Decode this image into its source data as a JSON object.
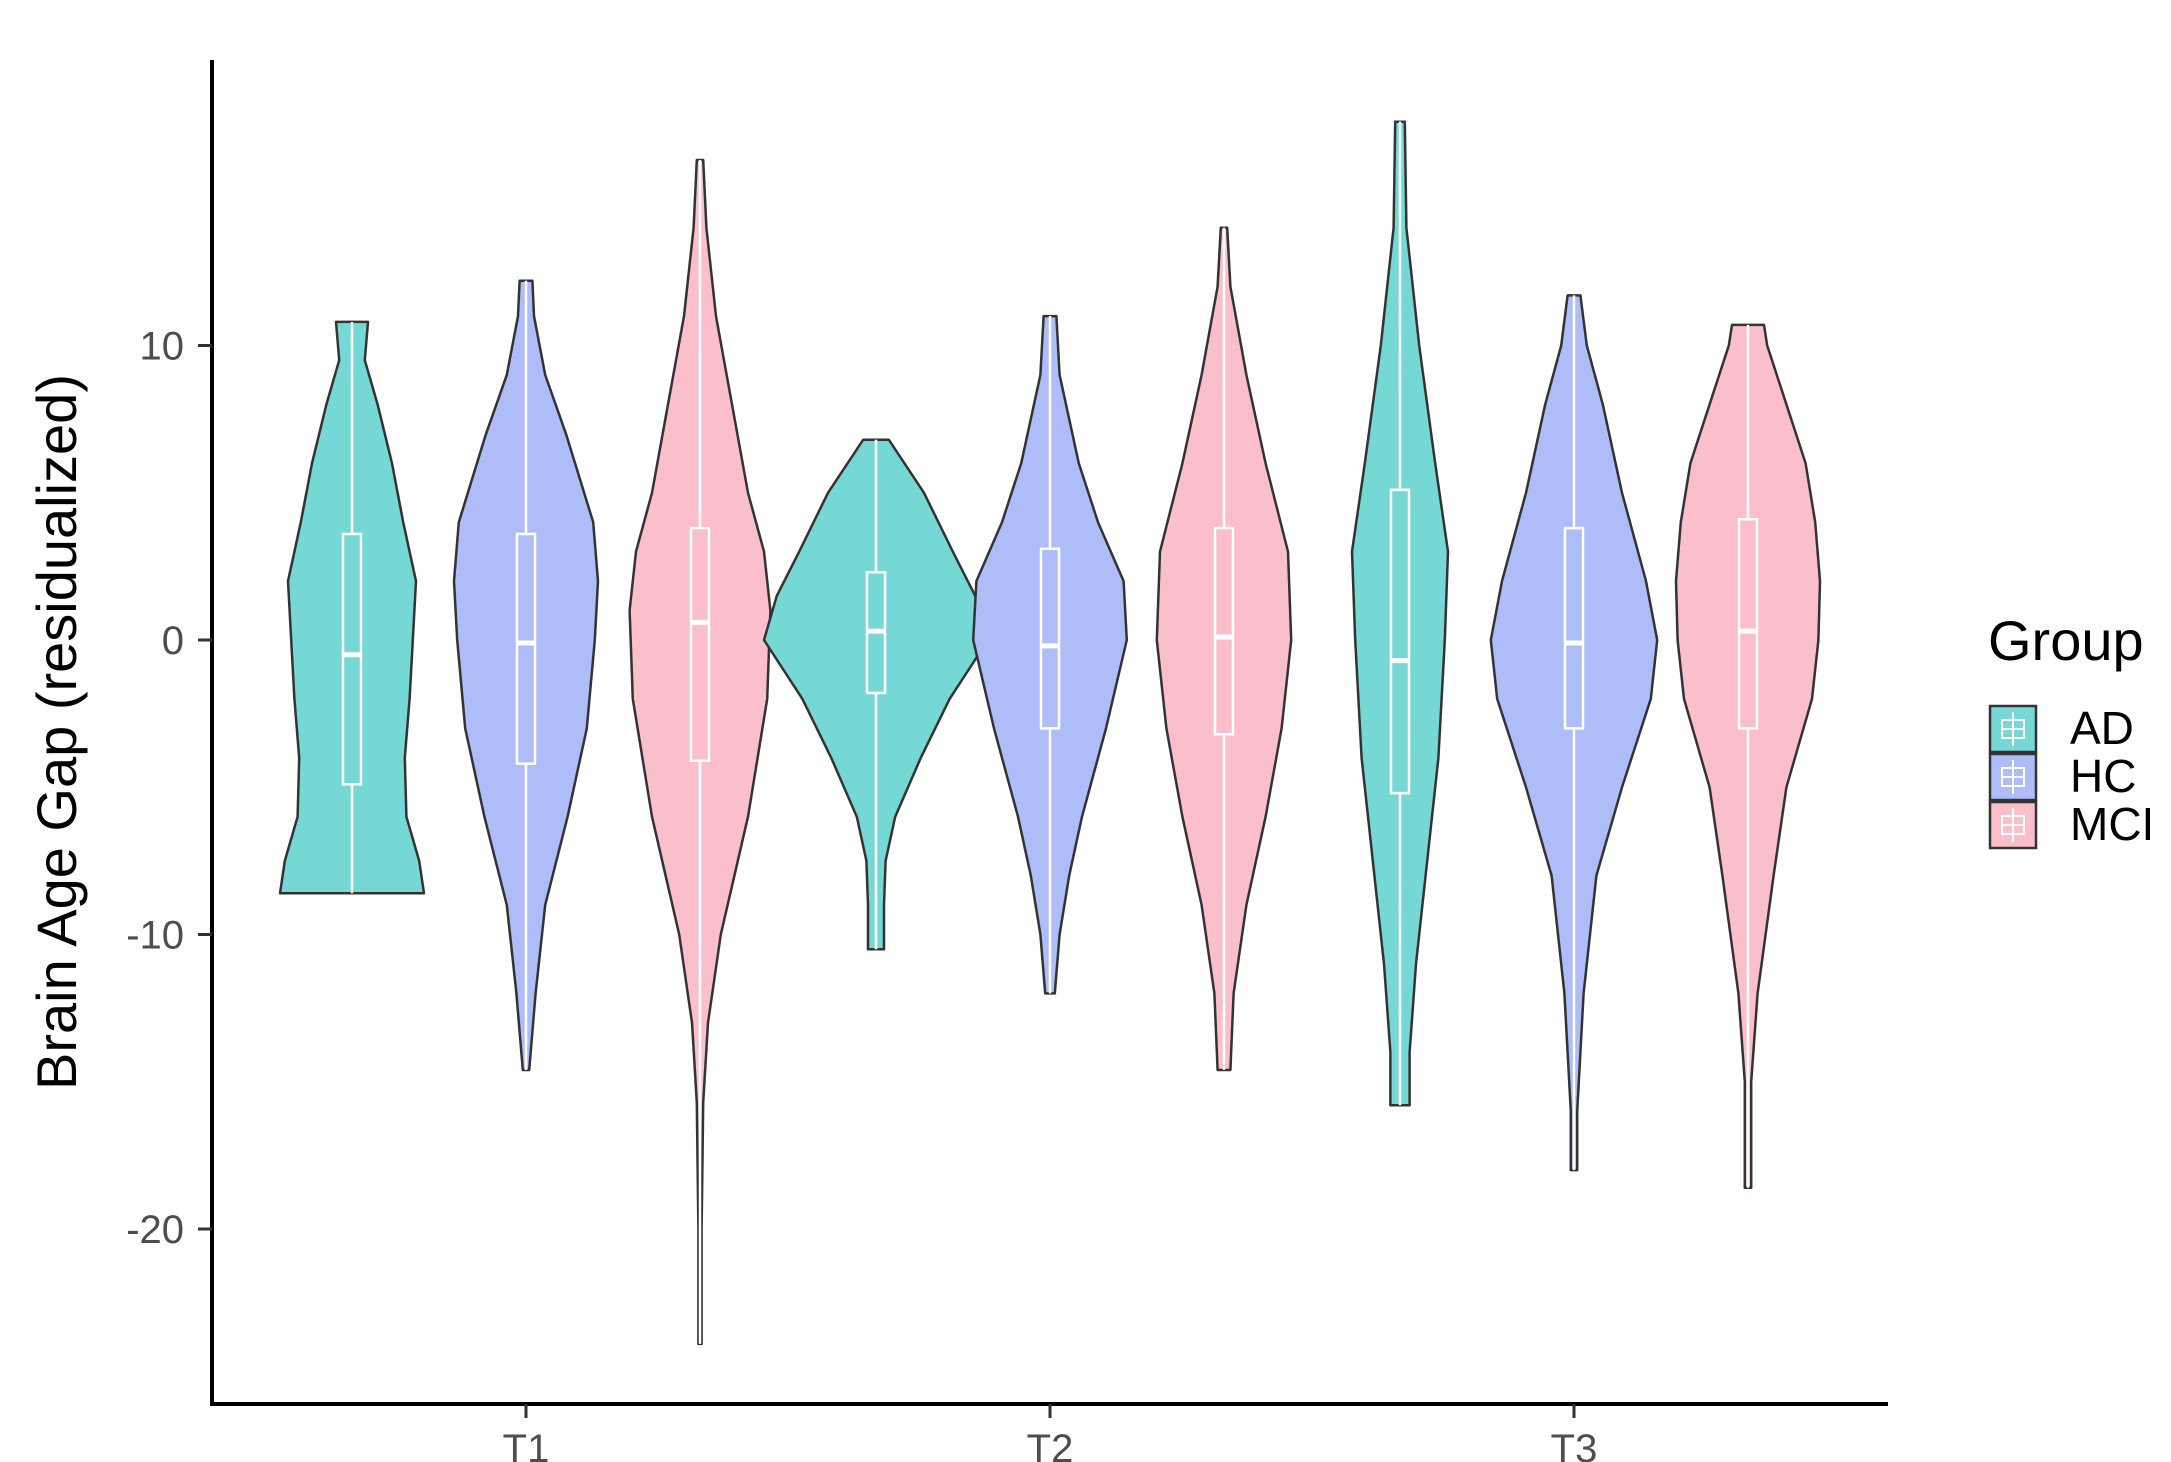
{
  "chart_data": {
    "type": "violin",
    "title": "",
    "xlabel": "",
    "ylabel": "Brain Age Gap (residualized)",
    "categories": [
      "T1",
      "T2",
      "T3"
    ],
    "y_ticks": [
      {
        "value": 10,
        "label": "10"
      },
      {
        "value": 0,
        "label": "0"
      },
      {
        "value": -10,
        "label": "-10"
      },
      {
        "value": -20,
        "label": "-20"
      }
    ],
    "ylim": [
      -26,
      20
    ],
    "grid": false,
    "legend": {
      "title": "Group",
      "position": "right"
    },
    "series": [
      {
        "name": "AD",
        "color": "#76D8D4"
      },
      {
        "name": "HC",
        "color": "#AEBCF8"
      },
      {
        "name": "MCI",
        "color": "#FBBFCB"
      }
    ],
    "violins": [
      {
        "category": "T1",
        "group": "AD",
        "min": -8.6,
        "q1": -4.9,
        "median": -0.5,
        "q3": 3.6,
        "max": 10.8,
        "density": [
          [
            -8.6,
            0.45
          ],
          [
            -7.5,
            0.42
          ],
          [
            -6,
            0.34
          ],
          [
            -4,
            0.33
          ],
          [
            -2,
            0.36
          ],
          [
            0,
            0.38
          ],
          [
            2,
            0.4
          ],
          [
            4,
            0.32
          ],
          [
            6,
            0.25
          ],
          [
            8,
            0.16
          ],
          [
            9.5,
            0.08
          ],
          [
            10.8,
            0.1
          ]
        ]
      },
      {
        "category": "T1",
        "group": "HC",
        "min": -14.6,
        "q1": -4.2,
        "median": -0.1,
        "q3": 3.6,
        "max": 12.2,
        "density": [
          [
            -14.6,
            0.02
          ],
          [
            -12,
            0.06
          ],
          [
            -9,
            0.12
          ],
          [
            -6,
            0.26
          ],
          [
            -3,
            0.38
          ],
          [
            0,
            0.43
          ],
          [
            2,
            0.45
          ],
          [
            4,
            0.42
          ],
          [
            7,
            0.25
          ],
          [
            9,
            0.12
          ],
          [
            11,
            0.05
          ],
          [
            12.2,
            0.04
          ]
        ]
      },
      {
        "category": "T1",
        "group": "MCI",
        "min": -23.9,
        "q1": -4.1,
        "median": 0.6,
        "q3": 3.8,
        "max": 16.3,
        "density": [
          [
            -23.9,
            0.01
          ],
          [
            -20,
            0.01
          ],
          [
            -15.7,
            0.02
          ],
          [
            -13,
            0.05
          ],
          [
            -10,
            0.13
          ],
          [
            -6,
            0.3
          ],
          [
            -2,
            0.42
          ],
          [
            1,
            0.44
          ],
          [
            3,
            0.4
          ],
          [
            5,
            0.3
          ],
          [
            8,
            0.2
          ],
          [
            11,
            0.1
          ],
          [
            14,
            0.04
          ],
          [
            16.3,
            0.02
          ]
        ]
      },
      {
        "category": "T2",
        "group": "AD",
        "min": -10.5,
        "q1": -1.8,
        "median": 0.3,
        "q3": 2.3,
        "max": 6.8,
        "density": [
          [
            -10.5,
            0.05
          ],
          [
            -9,
            0.05
          ],
          [
            -7.5,
            0.06
          ],
          [
            -6,
            0.12
          ],
          [
            -4,
            0.28
          ],
          [
            -2,
            0.46
          ],
          [
            0,
            0.7
          ],
          [
            1.5,
            0.62
          ],
          [
            3,
            0.48
          ],
          [
            5,
            0.3
          ],
          [
            6.8,
            0.08
          ]
        ]
      },
      {
        "category": "T2",
        "group": "HC",
        "min": -12.0,
        "q1": -3.0,
        "median": -0.2,
        "q3": 3.1,
        "max": 11.0,
        "density": [
          [
            -12,
            0.03
          ],
          [
            -10,
            0.06
          ],
          [
            -8,
            0.12
          ],
          [
            -6,
            0.2
          ],
          [
            -3,
            0.35
          ],
          [
            0,
            0.48
          ],
          [
            2,
            0.46
          ],
          [
            4,
            0.3
          ],
          [
            6,
            0.18
          ],
          [
            9,
            0.06
          ],
          [
            11,
            0.04
          ]
        ]
      },
      {
        "category": "T2",
        "group": "MCI",
        "min": -14.6,
        "q1": -3.2,
        "median": 0.1,
        "q3": 3.8,
        "max": 14.0,
        "density": [
          [
            -14.6,
            0.04
          ],
          [
            -12,
            0.06
          ],
          [
            -9,
            0.14
          ],
          [
            -6,
            0.26
          ],
          [
            -3,
            0.36
          ],
          [
            0,
            0.42
          ],
          [
            3,
            0.4
          ],
          [
            6,
            0.26
          ],
          [
            9,
            0.14
          ],
          [
            12,
            0.04
          ],
          [
            14,
            0.02
          ]
        ]
      },
      {
        "category": "T3",
        "group": "AD",
        "min": -15.8,
        "q1": -5.2,
        "median": -0.7,
        "q3": 5.1,
        "max": 17.6,
        "density": [
          [
            -15.8,
            0.06
          ],
          [
            -14,
            0.06
          ],
          [
            -11,
            0.1
          ],
          [
            -8,
            0.16
          ],
          [
            -4,
            0.24
          ],
          [
            0,
            0.28
          ],
          [
            3,
            0.3
          ],
          [
            6,
            0.22
          ],
          [
            10,
            0.12
          ],
          [
            14,
            0.04
          ],
          [
            17.6,
            0.03
          ]
        ]
      },
      {
        "category": "T3",
        "group": "HC",
        "min": -18.0,
        "q1": -3.0,
        "median": -0.1,
        "q3": 3.8,
        "max": 11.7,
        "density": [
          [
            -18,
            0.02
          ],
          [
            -16,
            0.02
          ],
          [
            -12,
            0.06
          ],
          [
            -8,
            0.14
          ],
          [
            -5,
            0.3
          ],
          [
            -2,
            0.48
          ],
          [
            0,
            0.52
          ],
          [
            2,
            0.45
          ],
          [
            5,
            0.3
          ],
          [
            8,
            0.18
          ],
          [
            10,
            0.08
          ],
          [
            11.7,
            0.04
          ]
        ]
      },
      {
        "category": "T3",
        "group": "MCI",
        "min": -18.6,
        "q1": -3.0,
        "median": 0.3,
        "q3": 4.1,
        "max": 10.7,
        "density": [
          [
            -18.6,
            0.02
          ],
          [
            -15,
            0.02
          ],
          [
            -12,
            0.06
          ],
          [
            -8,
            0.16
          ],
          [
            -5,
            0.24
          ],
          [
            -2,
            0.4
          ],
          [
            0,
            0.44
          ],
          [
            2,
            0.45
          ],
          [
            4,
            0.42
          ],
          [
            6,
            0.36
          ],
          [
            8,
            0.24
          ],
          [
            10,
            0.12
          ],
          [
            10.7,
            0.1
          ]
        ]
      }
    ]
  }
}
